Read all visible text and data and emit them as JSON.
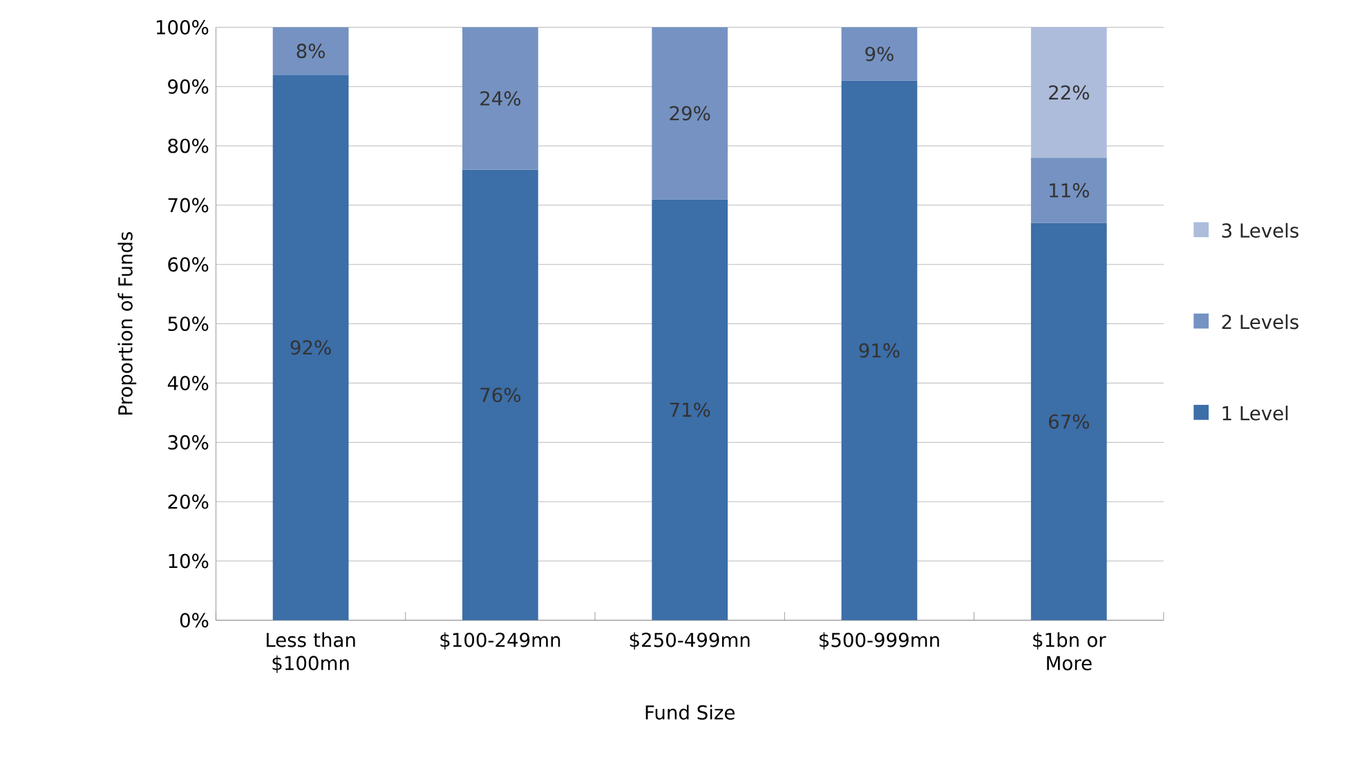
{
  "chart_data": {
    "type": "bar",
    "stacked": true,
    "xlabel": "Fund Size",
    "ylabel": "Proportion of Funds",
    "categories": [
      "Less than $100mn",
      "$100-249mn",
      "$250-499mn",
      "$500-999mn",
      "$1bn or More"
    ],
    "series": [
      {
        "name": "1 Level",
        "color": "#3c6ea8",
        "values": [
          92,
          76,
          71,
          91,
          67
        ],
        "value_labels": [
          "92%",
          "76%",
          "71%",
          "91%",
          "67%"
        ]
      },
      {
        "name": "2 Levels",
        "color": "#7592c2",
        "values": [
          8,
          24,
          29,
          9,
          11
        ],
        "value_labels": [
          "8%",
          "24%",
          "29%",
          "9%",
          "11%"
        ]
      },
      {
        "name": "3 Levels",
        "color": "#aebcdc",
        "values": [
          null,
          null,
          null,
          null,
          22
        ],
        "value_labels": [
          null,
          null,
          null,
          null,
          "22%"
        ]
      }
    ],
    "ylim": [
      0,
      100
    ],
    "yticks": [
      {
        "value": 0,
        "label": "0%"
      },
      {
        "value": 10,
        "label": "10%"
      },
      {
        "value": 20,
        "label": "20%"
      },
      {
        "value": 30,
        "label": "30%"
      },
      {
        "value": 40,
        "label": "40%"
      },
      {
        "value": 50,
        "label": "50%"
      },
      {
        "value": 60,
        "label": "60%"
      },
      {
        "value": 70,
        "label": "70%"
      },
      {
        "value": 80,
        "label": "80%"
      },
      {
        "value": 90,
        "label": "90%"
      },
      {
        "value": 100,
        "label": "100%"
      }
    ],
    "grid": "y",
    "legend": "right"
  }
}
